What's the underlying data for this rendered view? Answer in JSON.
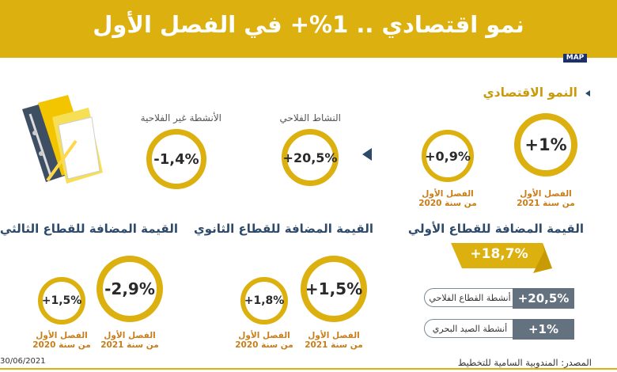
{
  "title": "نمو اقتصادي .. 1%+ في الفصل الأول",
  "agency_logo": "MAP",
  "colors": {
    "gold": "#dcb00f",
    "navy": "#2d4a6b",
    "gray": "#64717e",
    "orange": "#c97d18"
  },
  "growth": {
    "header": "النمو الاقتصادي",
    "q1_2021": {
      "value": "+1%",
      "label_line1": "الفصل الأول",
      "label_line2": "من سنة 2021"
    },
    "q1_2020": {
      "value": "+0,9%",
      "label_line1": "الفصل الأول",
      "label_line2": "من سنة 2020"
    },
    "agri": {
      "label": "النشاط الفلاحي",
      "value": "+20,5%"
    },
    "nonagri": {
      "label": "الأنشطة غير الفلاحية",
      "value": "-1,4%"
    }
  },
  "primary": {
    "header": "القيمة المضافة للقطاع الأولي",
    "total": "+18,7%",
    "rows": [
      {
        "label": "أنشطة القطاع الفلاحي",
        "value": "+20,5%"
      },
      {
        "label": "أنشطة الصيد البحري",
        "value": "+1%"
      }
    ]
  },
  "secondary": {
    "header": "القيمة المضافة للقطاع الثانوي",
    "q1_2021": {
      "value": "+1,5%",
      "label_line1": "الفصل الأول",
      "label_line2": "من سنة 2021"
    },
    "q1_2020": {
      "value": "+1,8%",
      "label_line1": "الفصل الأول",
      "label_line2": "من سنة 2020"
    }
  },
  "tertiary": {
    "header": "القيمة المضافة للقطاع الثالثي",
    "q1_2021": {
      "value": "-2,9%",
      "label_line1": "الفصل الأول",
      "label_line2": "من سنة 2021"
    },
    "q1_2020": {
      "value": "+1,5%",
      "label_line1": "الفصل الأول",
      "label_line2": "من سنة 2020"
    }
  },
  "source": "المصدر: المندوبية السامية للتخطيط",
  "date": "30/06/2021"
}
